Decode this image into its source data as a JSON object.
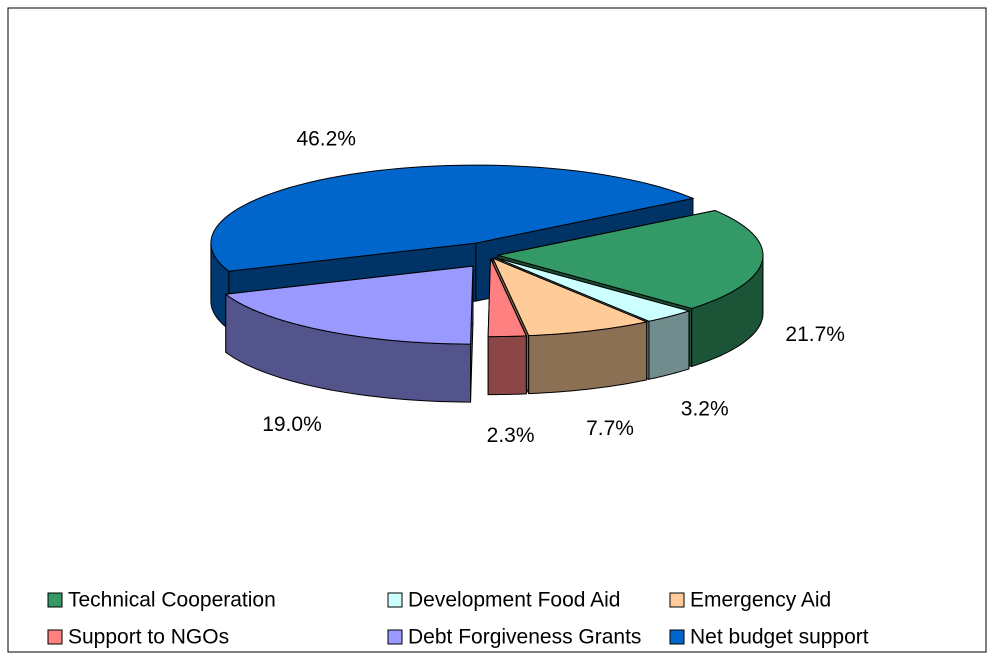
{
  "chart_data": {
    "type": "pie3d",
    "categories": [
      "Technical Cooperation",
      "Development Food Aid",
      "Emergency Aid",
      "Support to NGOs",
      "Debt Forgiveness Grants",
      "Net budget support"
    ],
    "values": [
      21.7,
      3.2,
      7.7,
      2.3,
      19.0,
      46.2
    ],
    "value_labels": [
      "21.7%",
      "3.2%",
      "7.7%",
      "2.3%",
      "19.0%",
      "46.2%"
    ],
    "colors": [
      "#339966",
      "#ccffff",
      "#ffcc99",
      "#ff8080",
      "#9999ff",
      "#0066cc"
    ],
    "legend": "bottom"
  }
}
